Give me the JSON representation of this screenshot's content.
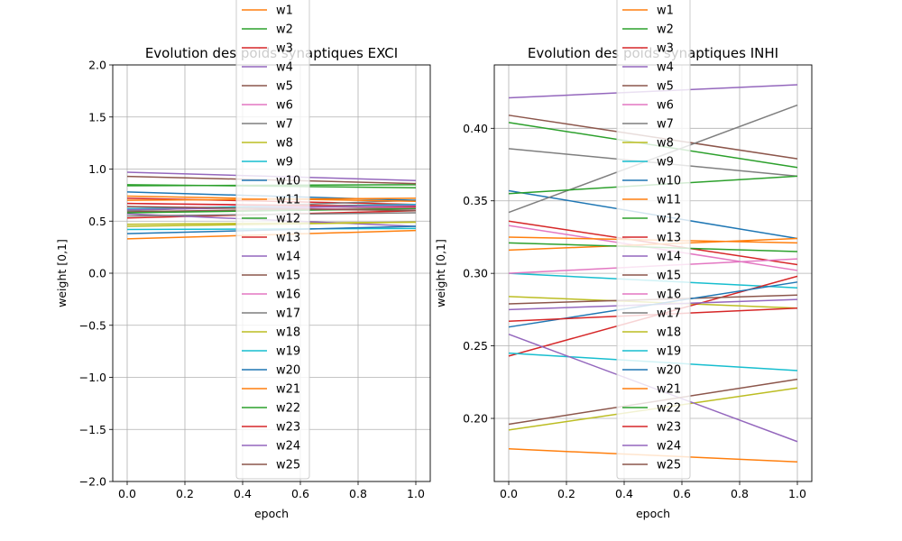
{
  "chart_data": [
    {
      "type": "line",
      "title": "Evolution des poids synaptiques EXCI",
      "xlabel": "epoch",
      "ylabel": "weight [0,1]",
      "xlim": [
        -0.05,
        1.05
      ],
      "ylim": [
        -2.0,
        2.0
      ],
      "xticks": [
        0.0,
        0.2,
        0.4,
        0.6,
        0.8,
        1.0
      ],
      "yticks": [
        -2.0,
        -1.5,
        -1.0,
        -0.5,
        0.0,
        0.5,
        1.0,
        1.5,
        2.0
      ],
      "grid": true,
      "legend": "upper center",
      "x": [
        0,
        1
      ],
      "series": [
        {
          "name": "w1",
          "values": [
            0.33,
            0.41
          ]
        },
        {
          "name": "w2",
          "values": [
            0.85,
            0.82
          ]
        },
        {
          "name": "w3",
          "values": [
            0.72,
            0.66
          ]
        },
        {
          "name": "w4",
          "values": [
            0.97,
            0.89
          ]
        },
        {
          "name": "w5",
          "values": [
            0.59,
            0.63
          ]
        },
        {
          "name": "w6",
          "values": [
            0.64,
            0.61
          ]
        },
        {
          "name": "w7",
          "values": [
            0.6,
            0.7
          ]
        },
        {
          "name": "w8",
          "values": [
            0.47,
            0.49
          ]
        },
        {
          "name": "w9",
          "values": [
            0.62,
            0.66
          ]
        },
        {
          "name": "w10",
          "values": [
            0.78,
            0.7
          ]
        },
        {
          "name": "w11",
          "values": [
            0.7,
            0.72
          ]
        },
        {
          "name": "w12",
          "values": [
            0.84,
            0.85
          ]
        },
        {
          "name": "w13",
          "values": [
            0.53,
            0.6
          ]
        },
        {
          "name": "w14",
          "values": [
            0.57,
            0.45
          ]
        },
        {
          "name": "w15",
          "values": [
            0.93,
            0.86
          ]
        },
        {
          "name": "w16",
          "values": [
            0.67,
            0.63
          ]
        },
        {
          "name": "w17",
          "values": [
            0.55,
            0.58
          ]
        },
        {
          "name": "w18",
          "values": [
            0.45,
            0.49
          ]
        },
        {
          "name": "w19",
          "values": [
            0.42,
            0.43
          ]
        },
        {
          "name": "w20",
          "values": [
            0.38,
            0.45
          ]
        },
        {
          "name": "w21",
          "values": [
            0.74,
            0.69
          ]
        },
        {
          "name": "w22",
          "values": [
            0.58,
            0.62
          ]
        },
        {
          "name": "w23",
          "values": [
            0.67,
            0.64
          ]
        },
        {
          "name": "w24",
          "values": [
            0.61,
            0.65
          ]
        },
        {
          "name": "w25",
          "values": [
            0.64,
            0.6
          ]
        }
      ]
    },
    {
      "type": "line",
      "title": "Evolution des poids synaptiques INHI",
      "xlabel": "epoch",
      "ylabel": "weight [0,1]",
      "xlim": [
        -0.05,
        1.05
      ],
      "ylim": [
        0.1565,
        0.4437
      ],
      "xticks": [
        0.0,
        0.2,
        0.4,
        0.6,
        0.8,
        1.0
      ],
      "yticks": [
        0.2,
        0.25,
        0.3,
        0.35,
        0.4
      ],
      "grid": true,
      "legend": "upper center",
      "x": [
        0,
        1
      ],
      "series": [
        {
          "name": "w1",
          "values": [
            0.179,
            0.17
          ]
        },
        {
          "name": "w2",
          "values": [
            0.404,
            0.373
          ]
        },
        {
          "name": "w3",
          "values": [
            0.336,
            0.306
          ]
        },
        {
          "name": "w4",
          "values": [
            0.421,
            0.43
          ]
        },
        {
          "name": "w5",
          "values": [
            0.409,
            0.379
          ]
        },
        {
          "name": "w6",
          "values": [
            0.333,
            0.302
          ]
        },
        {
          "name": "w7",
          "values": [
            0.386,
            0.367
          ]
        },
        {
          "name": "w8",
          "values": [
            0.284,
            0.276
          ]
        },
        {
          "name": "w9",
          "values": [
            0.3,
            0.29
          ]
        },
        {
          "name": "w10",
          "values": [
            0.357,
            0.324
          ]
        },
        {
          "name": "w11",
          "values": [
            0.316,
            0.324
          ]
        },
        {
          "name": "w12",
          "values": [
            0.321,
            0.315
          ]
        },
        {
          "name": "w13",
          "values": [
            0.243,
            0.298
          ]
        },
        {
          "name": "w14",
          "values": [
            0.275,
            0.282
          ]
        },
        {
          "name": "w15",
          "values": [
            0.279,
            0.285
          ]
        },
        {
          "name": "w16",
          "values": [
            0.3,
            0.31
          ]
        },
        {
          "name": "w17",
          "values": [
            0.342,
            0.416
          ]
        },
        {
          "name": "w18",
          "values": [
            0.192,
            0.221
          ]
        },
        {
          "name": "w19",
          "values": [
            0.245,
            0.233
          ]
        },
        {
          "name": "w20",
          "values": [
            0.263,
            0.294
          ]
        },
        {
          "name": "w21",
          "values": [
            0.325,
            0.321
          ]
        },
        {
          "name": "w22",
          "values": [
            0.355,
            0.367
          ]
        },
        {
          "name": "w23",
          "values": [
            0.267,
            0.276
          ]
        },
        {
          "name": "w24",
          "values": [
            0.258,
            0.184
          ]
        },
        {
          "name": "w25",
          "values": [
            0.196,
            0.227
          ]
        }
      ]
    }
  ],
  "colors": [
    "#ff7f0e",
    "#2ca02c",
    "#d62728",
    "#9467bd",
    "#8c564b",
    "#e377c2",
    "#7f7f7f",
    "#bcbd22",
    "#17becf",
    "#1f77b4"
  ]
}
